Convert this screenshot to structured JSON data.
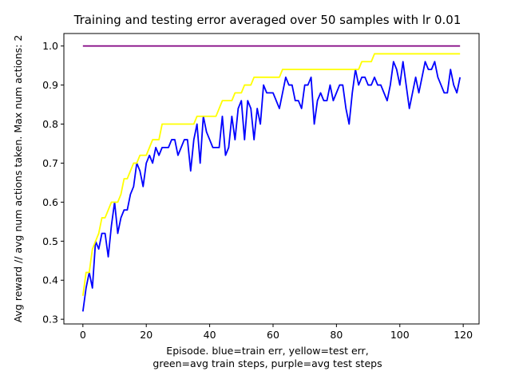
{
  "chart_data": {
    "type": "line",
    "title": "Training and testing error averaged over 50 samples with lr 0.01",
    "xlabel_lines": [
      "Episode.  blue=train err, yellow=test err,",
      "green=avg train steps, purple=avg test steps"
    ],
    "ylabel": "Avg reward // avg num actions taken.  Max num actions: 2",
    "xlim": [
      -6,
      125
    ],
    "ylim": [
      0.288,
      1.032
    ],
    "xticks": [
      0,
      20,
      40,
      60,
      80,
      100,
      120
    ],
    "yticks": [
      0.3,
      0.4,
      0.5,
      0.6,
      0.7,
      0.8,
      0.9,
      1.0
    ],
    "xtick_labels": [
      "0",
      "20",
      "40",
      "60",
      "80",
      "100",
      "120"
    ],
    "ytick_labels": [
      "0.3",
      "0.4",
      "0.5",
      "0.6",
      "0.7",
      "0.8",
      "0.9",
      "1.0"
    ],
    "grid": false,
    "series": [
      {
        "color": "#0000ff",
        "x_start": 0,
        "values": [
          0.32,
          0.38,
          0.42,
          0.38,
          0.5,
          0.48,
          0.52,
          0.52,
          0.46,
          0.54,
          0.6,
          0.52,
          0.56,
          0.58,
          0.58,
          0.62,
          0.64,
          0.7,
          0.68,
          0.64,
          0.7,
          0.72,
          0.7,
          0.74,
          0.72,
          0.74,
          0.74,
          0.74,
          0.76,
          0.76,
          0.72,
          0.74,
          0.76,
          0.76,
          0.68,
          0.76,
          0.8,
          0.7,
          0.82,
          0.78,
          0.76,
          0.74,
          0.74,
          0.74,
          0.82,
          0.72,
          0.74,
          0.82,
          0.76,
          0.84,
          0.86,
          0.76,
          0.86,
          0.84,
          0.76,
          0.84,
          0.8,
          0.9,
          0.88,
          0.88,
          0.88,
          0.86,
          0.84,
          0.88,
          0.92,
          0.9,
          0.9,
          0.86,
          0.86,
          0.84,
          0.9,
          0.9,
          0.92,
          0.8,
          0.86,
          0.88,
          0.86,
          0.86,
          0.9,
          0.86,
          0.88,
          0.9,
          0.9,
          0.84,
          0.8,
          0.88,
          0.94,
          0.9,
          0.92,
          0.92,
          0.9,
          0.9,
          0.92,
          0.9,
          0.9,
          0.88,
          0.86,
          0.9,
          0.96,
          0.94,
          0.9,
          0.96,
          0.9,
          0.84,
          0.88,
          0.92,
          0.88,
          0.92,
          0.96,
          0.94,
          0.94,
          0.96,
          0.92,
          0.9,
          0.88,
          0.88,
          0.94,
          0.9,
          0.88,
          0.92
        ]
      },
      {
        "color": "#ffff00",
        "x_start": 0,
        "values": [
          0.36,
          0.42,
          0.42,
          0.48,
          0.5,
          0.52,
          0.56,
          0.56,
          0.58,
          0.6,
          0.6,
          0.6,
          0.62,
          0.66,
          0.66,
          0.68,
          0.7,
          0.7,
          0.72,
          0.72,
          0.72,
          0.74,
          0.76,
          0.76,
          0.76,
          0.8,
          0.8,
          0.8,
          0.8,
          0.8,
          0.8,
          0.8,
          0.8,
          0.8,
          0.8,
          0.8,
          0.82,
          0.82,
          0.82,
          0.82,
          0.82,
          0.82,
          0.82,
          0.84,
          0.86,
          0.86,
          0.86,
          0.86,
          0.88,
          0.88,
          0.88,
          0.9,
          0.9,
          0.9,
          0.92,
          0.92,
          0.92,
          0.92,
          0.92,
          0.92,
          0.92,
          0.92,
          0.92,
          0.94,
          0.94,
          0.94,
          0.94,
          0.94,
          0.94,
          0.94,
          0.94,
          0.94,
          0.94,
          0.94,
          0.94,
          0.94,
          0.94,
          0.94,
          0.94,
          0.94,
          0.94,
          0.94,
          0.94,
          0.94,
          0.94,
          0.94,
          0.94,
          0.94,
          0.96,
          0.96,
          0.96,
          0.96,
          0.98,
          0.98,
          0.98,
          0.98,
          0.98,
          0.98,
          0.98,
          0.98,
          0.98,
          0.98,
          0.98,
          0.98,
          0.98,
          0.98,
          0.98,
          0.98,
          0.98,
          0.98,
          0.98,
          0.98,
          0.98,
          0.98,
          0.98,
          0.98,
          0.98,
          0.98,
          0.98,
          0.98
        ]
      },
      {
        "color": "#800080",
        "x": [
          0,
          119
        ],
        "values": [
          1.0,
          1.0
        ]
      }
    ]
  }
}
